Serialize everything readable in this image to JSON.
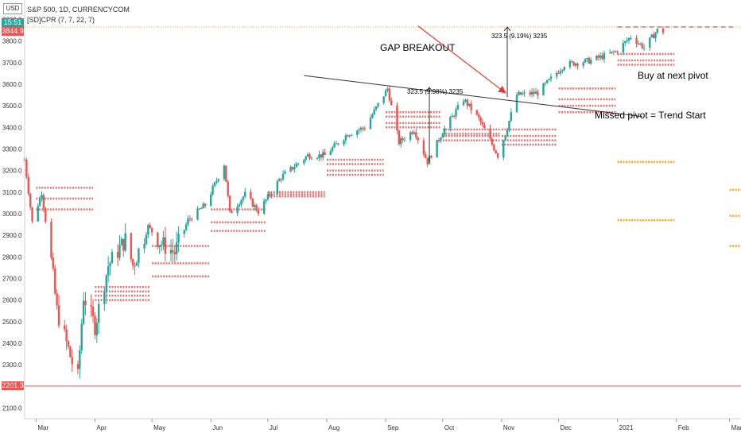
{
  "header": {
    "currency_button": "USD",
    "symbol_line": "S&P 500, 1D, CURRENCYCOM",
    "indicator_line": "[SD]CPR (7, 7, 22, 7)"
  },
  "price_tags": {
    "timer": "15:51",
    "last_price": "3844.9",
    "support_price": "2201.3",
    "timer_color": "#26a69a",
    "last_color": "#ef5350",
    "support_color": "#ef5350"
  },
  "annotations": {
    "gap_breakout": "GAP BREAKOUT",
    "buy_next_pivot": "Buy at next pivot",
    "missed_pivot": "Missed pivot = Trend Start",
    "measure_1": "323.5 (9.98%) 3235",
    "measure_2": "323.5 (9.19%) 3235"
  },
  "colors": {
    "up_candle": "#26a69a",
    "down_candle": "#ef5350",
    "pivot_orange": "#f5a623",
    "pivot_red": "#e57373",
    "trendline": "#333333",
    "arrow": "#e53935"
  },
  "chart_data": {
    "type": "candlestick",
    "title": "S&P 500, 1D, CURRENCYCOM",
    "x_axis": {
      "type": "date",
      "range": [
        "2020-02-24",
        "2021-03-07"
      ],
      "tick_labels": [
        "Mar",
        "Apr",
        "May",
        "Jun",
        "Jul",
        "Aug",
        "Sep",
        "Oct",
        "Nov",
        "Dec",
        "2021",
        "Feb",
        "Mar"
      ],
      "tick_dates": [
        "2020-03-01",
        "2020-04-01",
        "2020-05-01",
        "2020-06-01",
        "2020-07-01",
        "2020-08-01",
        "2020-09-01",
        "2020-10-01",
        "2020-11-01",
        "2020-12-01",
        "2021-01-01",
        "2021-02-01",
        "2021-03-01"
      ]
    },
    "y_axis": {
      "range": [
        2050,
        3990
      ],
      "tick_labels": [
        "2100.0",
        "2200.0",
        "2300.0",
        "2400.0",
        "2500.0",
        "2600.0",
        "2700.0",
        "2800.0",
        "2900.0",
        "3000.0",
        "3100.0",
        "3200.0",
        "3300.0",
        "3400.0",
        "3500.0",
        "3600.0",
        "3700.0",
        "3800.0",
        "3900.0"
      ],
      "tick_values": [
        2100,
        2200,
        2300,
        2400,
        2500,
        2600,
        2700,
        2800,
        2900,
        3000,
        3100,
        3200,
        3300,
        3400,
        3500,
        3600,
        3700,
        3800,
        3900
      ]
    },
    "grid": false,
    "price_path": [
      [
        "2020-02-24",
        3250
      ],
      [
        "2020-02-28",
        2960
      ],
      [
        "2020-03-04",
        3100
      ],
      [
        "2020-03-09",
        2780
      ],
      [
        "2020-03-12",
        2550
      ],
      [
        "2020-03-16",
        2430
      ],
      [
        "2020-03-20",
        2310
      ],
      [
        "2020-03-23",
        2240
      ],
      [
        "2020-03-26",
        2620
      ],
      [
        "2020-04-01",
        2480
      ],
      [
        "2020-04-08",
        2760
      ],
      [
        "2020-04-17",
        2880
      ],
      [
        "2020-04-21",
        2760
      ],
      [
        "2020-04-29",
        2940
      ],
      [
        "2020-05-06",
        2860
      ],
      [
        "2020-05-13",
        2820
      ],
      [
        "2020-05-20",
        2970
      ],
      [
        "2020-05-29",
        3040
      ],
      [
        "2020-06-08",
        3230
      ],
      [
        "2020-06-11",
        3000
      ],
      [
        "2020-06-19",
        3090
      ],
      [
        "2020-06-26",
        3010
      ],
      [
        "2020-07-08",
        3170
      ],
      [
        "2020-07-22",
        3270
      ],
      [
        "2020-07-31",
        3270
      ],
      [
        "2020-08-12",
        3370
      ],
      [
        "2020-08-21",
        3400
      ],
      [
        "2020-09-02",
        3580
      ],
      [
        "2020-09-08",
        3330
      ],
      [
        "2020-09-16",
        3390
      ],
      [
        "2020-09-23",
        3240
      ],
      [
        "2020-10-01",
        3380
      ],
      [
        "2020-10-12",
        3530
      ],
      [
        "2020-10-20",
        3440
      ],
      [
        "2020-10-30",
        3270
      ],
      [
        "2020-11-03",
        3370
      ],
      [
        "2020-11-09",
        3550
      ],
      [
        "2020-11-20",
        3560
      ],
      [
        "2020-12-04",
        3690
      ],
      [
        "2020-12-18",
        3710
      ],
      [
        "2020-12-31",
        3750
      ],
      [
        "2021-01-08",
        3820
      ],
      [
        "2021-01-15",
        3770
      ],
      [
        "2021-01-22",
        3850
      ],
      [
        "2021-01-25",
        3844.9
      ]
    ],
    "pivot_levels": [
      {
        "start": "2020-03-01",
        "end": "2020-03-31",
        "level": 3120,
        "color": "#e57373"
      },
      {
        "start": "2020-03-01",
        "end": "2020-03-31",
        "level": 3070,
        "color": "#e57373"
      },
      {
        "start": "2020-03-01",
        "end": "2020-03-31",
        "level": 3020,
        "color": "#e57373"
      },
      {
        "start": "2020-04-01",
        "end": "2020-04-30",
        "level": 2660,
        "color": "#e57373"
      },
      {
        "start": "2020-04-01",
        "end": "2020-04-30",
        "level": 2640,
        "color": "#e57373"
      },
      {
        "start": "2020-04-01",
        "end": "2020-04-30",
        "level": 2620,
        "color": "#e57373"
      },
      {
        "start": "2020-04-01",
        "end": "2020-04-30",
        "level": 2600,
        "color": "#e57373"
      },
      {
        "start": "2020-05-01",
        "end": "2020-05-31",
        "level": 2850,
        "color": "#e57373"
      },
      {
        "start": "2020-05-01",
        "end": "2020-05-31",
        "level": 2770,
        "color": "#e57373"
      },
      {
        "start": "2020-05-01",
        "end": "2020-05-31",
        "level": 2710,
        "color": "#e57373"
      },
      {
        "start": "2020-06-01",
        "end": "2020-06-30",
        "level": 3020,
        "color": "#e57373"
      },
      {
        "start": "2020-06-01",
        "end": "2020-06-30",
        "level": 2960,
        "color": "#e57373"
      },
      {
        "start": "2020-06-01",
        "end": "2020-06-30",
        "level": 2920,
        "color": "#e57373"
      },
      {
        "start": "2020-07-01",
        "end": "2020-07-31",
        "level": 3100,
        "color": "#e57373"
      },
      {
        "start": "2020-07-01",
        "end": "2020-07-31",
        "level": 3090,
        "color": "#e57373"
      },
      {
        "start": "2020-07-01",
        "end": "2020-07-31",
        "level": 3080,
        "color": "#e57373"
      },
      {
        "start": "2020-08-01",
        "end": "2020-08-31",
        "level": 3250,
        "color": "#e57373"
      },
      {
        "start": "2020-08-01",
        "end": "2020-08-31",
        "level": 3230,
        "color": "#e57373"
      },
      {
        "start": "2020-08-01",
        "end": "2020-08-31",
        "level": 3200,
        "color": "#e57373"
      },
      {
        "start": "2020-08-01",
        "end": "2020-08-31",
        "level": 3180,
        "color": "#e57373"
      },
      {
        "start": "2020-09-01",
        "end": "2020-09-30",
        "level": 3470,
        "color": "#e57373"
      },
      {
        "start": "2020-09-01",
        "end": "2020-09-30",
        "level": 3450,
        "color": "#e57373"
      },
      {
        "start": "2020-09-01",
        "end": "2020-09-30",
        "level": 3420,
        "color": "#e57373"
      },
      {
        "start": "2020-09-01",
        "end": "2020-09-30",
        "level": 3400,
        "color": "#e57373"
      },
      {
        "start": "2020-10-01",
        "end": "2020-10-31",
        "level": 3390,
        "color": "#e57373"
      },
      {
        "start": "2020-10-01",
        "end": "2020-10-31",
        "level": 3370,
        "color": "#e57373"
      },
      {
        "start": "2020-10-01",
        "end": "2020-10-31",
        "level": 3360,
        "color": "#e57373"
      },
      {
        "start": "2020-10-01",
        "end": "2020-10-31",
        "level": 3340,
        "color": "#e57373"
      },
      {
        "start": "2020-11-01",
        "end": "2020-11-30",
        "level": 3390,
        "color": "#e57373"
      },
      {
        "start": "2020-11-01",
        "end": "2020-11-30",
        "level": 3360,
        "color": "#e57373"
      },
      {
        "start": "2020-11-01",
        "end": "2020-11-30",
        "level": 3340,
        "color": "#e57373"
      },
      {
        "start": "2020-11-01",
        "end": "2020-11-30",
        "level": 3320,
        "color": "#e57373"
      },
      {
        "start": "2020-12-01",
        "end": "2020-12-31",
        "level": 3580,
        "color": "#e57373"
      },
      {
        "start": "2020-12-01",
        "end": "2020-12-31",
        "level": 3530,
        "color": "#e57373"
      },
      {
        "start": "2020-12-01",
        "end": "2020-12-31",
        "level": 3500,
        "color": "#e57373"
      },
      {
        "start": "2020-12-01",
        "end": "2020-12-31",
        "level": 3470,
        "color": "#e57373"
      },
      {
        "start": "2021-01-01",
        "end": "2021-01-31",
        "level": 3740,
        "color": "#e57373"
      },
      {
        "start": "2021-01-01",
        "end": "2021-01-31",
        "level": 3710,
        "color": "#e57373"
      },
      {
        "start": "2021-01-01",
        "end": "2021-01-31",
        "level": 3690,
        "color": "#e57373"
      },
      {
        "start": "2021-03-01",
        "end": "2021-03-31",
        "level": 3110,
        "color": "#f5a623"
      },
      {
        "start": "2021-03-01",
        "end": "2021-03-31",
        "level": 2990,
        "color": "#f5a623"
      },
      {
        "start": "2021-03-01",
        "end": "2021-03-31",
        "level": 2850,
        "color": "#f5a623"
      },
      {
        "start": "2021-01-01",
        "end": "2021-01-31",
        "level": 3240,
        "color": "#f5a623"
      },
      {
        "start": "2021-01-01",
        "end": "2021-01-31",
        "level": 2970,
        "color": "#f5a623"
      }
    ],
    "horizontal_lines": [
      {
        "level": 3865,
        "style": "dotted",
        "color": "#f5a623"
      },
      {
        "level": 2201.3,
        "style": "solid",
        "color": "#ef5350"
      }
    ]
  }
}
